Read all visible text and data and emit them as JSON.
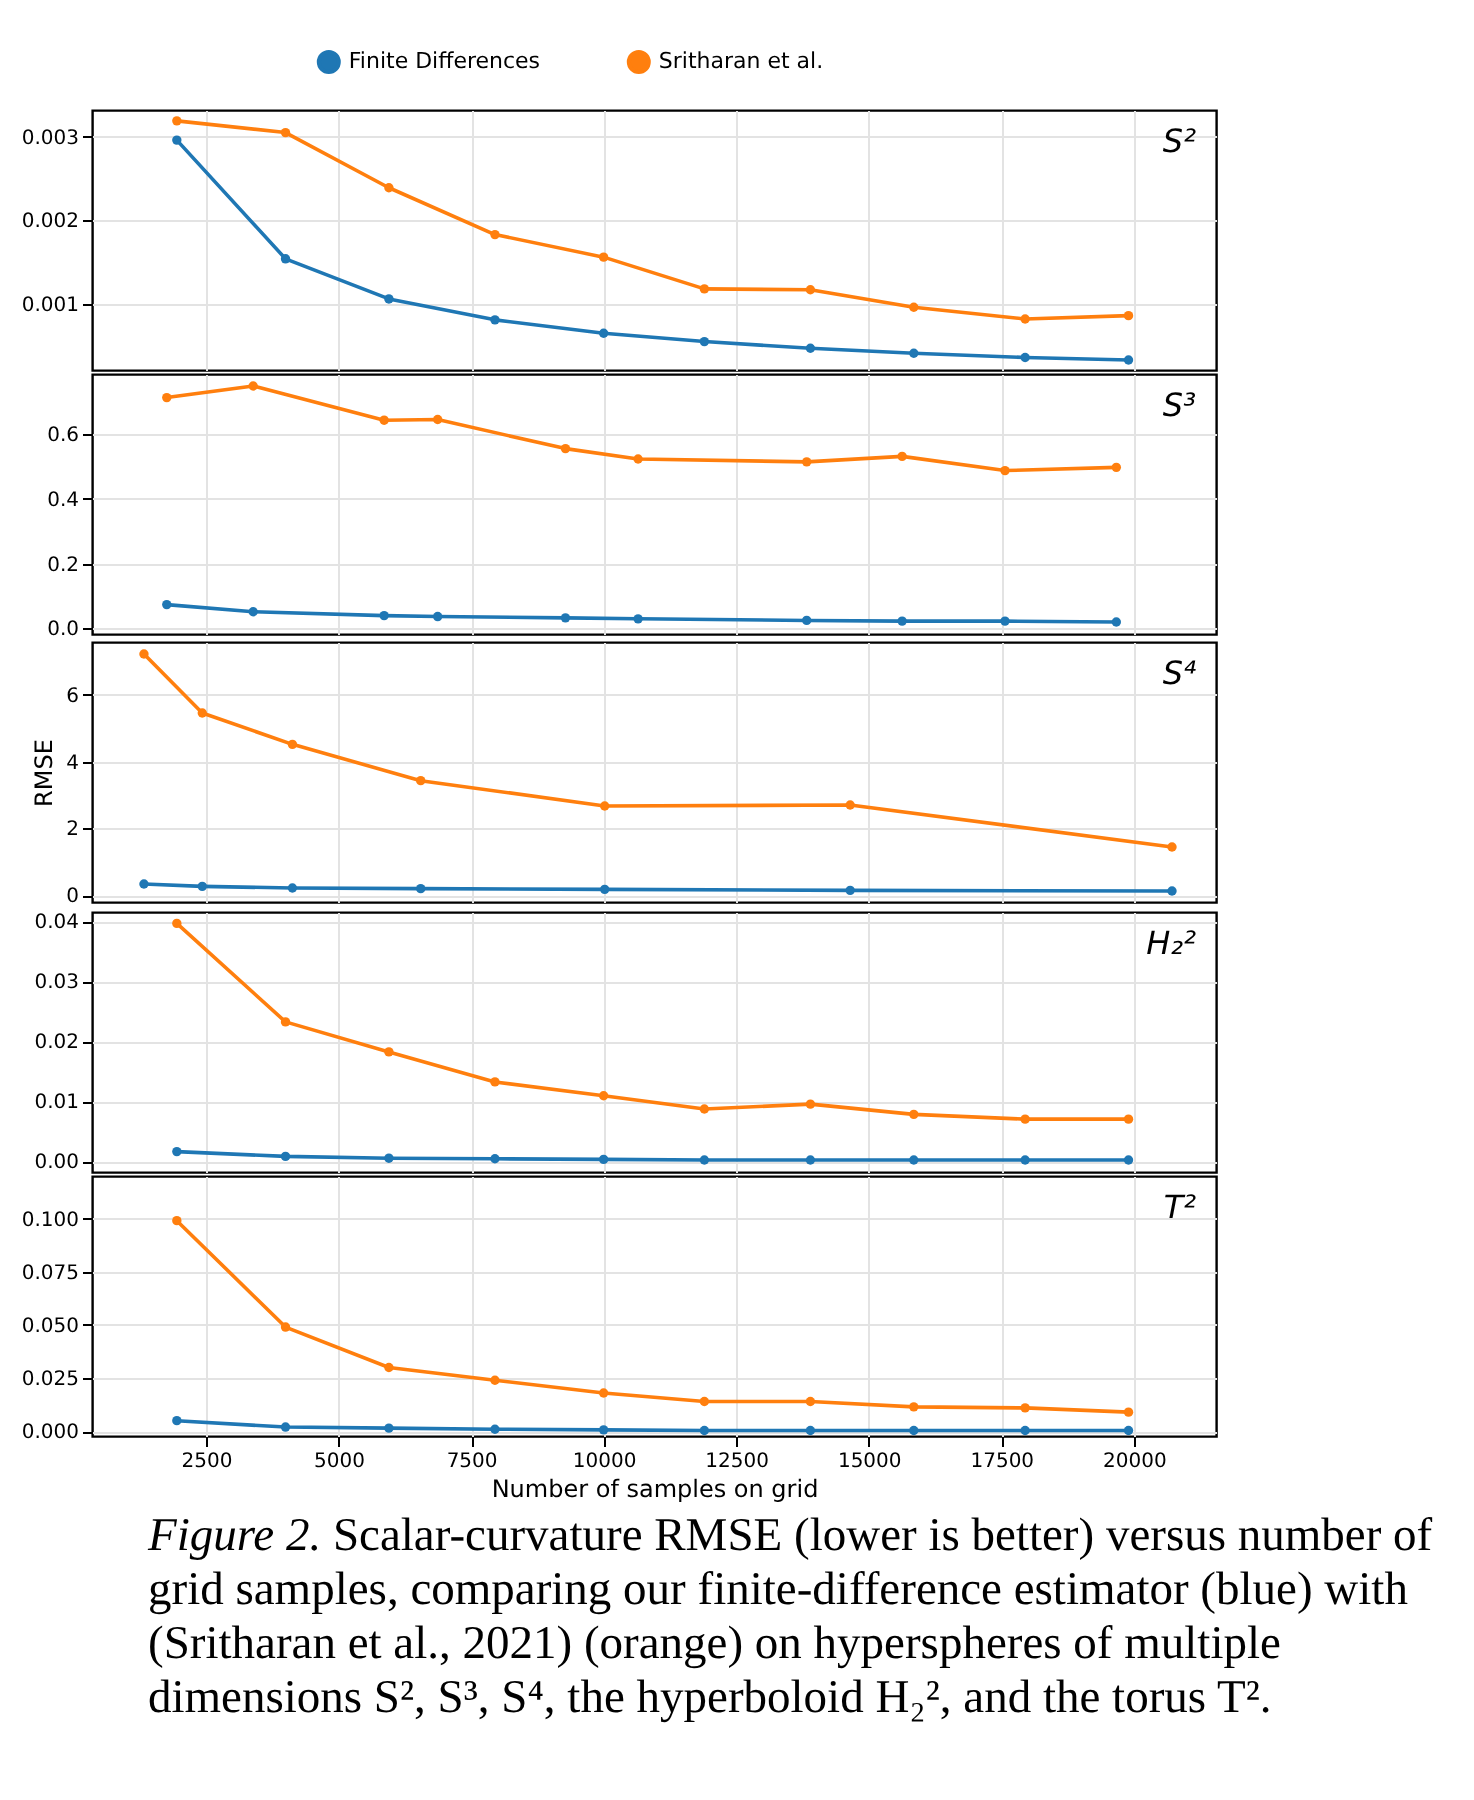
{
  "chart_data": [
    {
      "type": "line",
      "legend": "top",
      "grid": true,
      "marker": "circle",
      "tick_labels": "y",
      "annotations": [
        "S²"
      ],
      "xlim": [
        350,
        21550
      ],
      "xticks": [
        2500,
        5000,
        7500,
        10000,
        12500,
        15000,
        17500,
        20000
      ],
      "ylim": [
        0.00021,
        0.00332
      ],
      "yticks": [
        0.001,
        0.002,
        0.003
      ],
      "x": [
        1950,
        4000,
        5950,
        7950,
        10000,
        11900,
        13900,
        15850,
        17950,
        19900
      ],
      "series": [
        {
          "name": "Finite Differences",
          "color": "#1f77b4",
          "values": [
            0.00296,
            0.00154,
            0.00106,
            0.00081,
            0.00065,
            0.00055,
            0.00047,
            0.00041,
            0.00036,
            0.00033
          ]
        },
        {
          "name": "Sritharan et al.",
          "color": "#ff7f0e",
          "values": [
            0.00319,
            0.00305,
            0.00239,
            0.00183,
            0.00156,
            0.00118,
            0.00117,
            0.00096,
            0.00082,
            0.00086
          ]
        }
      ]
    },
    {
      "type": "line",
      "grid": true,
      "marker": "circle",
      "tick_labels": "y",
      "annotations": [
        "S³"
      ],
      "xlim": [
        350,
        21550
      ],
      "xticks": [
        2500,
        5000,
        7500,
        10000,
        12500,
        15000,
        17500,
        20000
      ],
      "ylim": [
        -0.018,
        0.787
      ],
      "yticks": [
        {
          "value": 0,
          "label": "0.0"
        },
        0.2,
        0.4,
        0.6
      ],
      "x": [
        1760,
        3390,
        5860,
        6870,
        9280,
        10650,
        13830,
        15630,
        17570,
        19670
      ],
      "series": [
        {
          "color": "#1f77b4",
          "values": [
            0.073,
            0.051,
            0.039,
            0.036,
            0.032,
            0.029,
            0.024,
            0.022,
            0.022,
            0.019
          ]
        },
        {
          "color": "#ff7f0e",
          "values": [
            0.714,
            0.75,
            0.644,
            0.646,
            0.556,
            0.524,
            0.515,
            0.532,
            0.488,
            0.498
          ]
        }
      ]
    },
    {
      "type": "line",
      "grid": true,
      "marker": "circle",
      "tick_labels": "y",
      "ylabel": "RMSE",
      "annotations": [
        "S⁴"
      ],
      "xlim": [
        350,
        21550
      ],
      "xticks": [
        2500,
        5000,
        7500,
        10000,
        12500,
        15000,
        17500,
        20000
      ],
      "ylim": [
        -0.21,
        7.59
      ],
      "yticks": [
        0,
        2,
        4,
        6
      ],
      "x": [
        1330,
        2430,
        4130,
        6550,
        10020,
        14650,
        20720
      ],
      "series": [
        {
          "color": "#1f77b4",
          "values": [
            0.33,
            0.26,
            0.21,
            0.19,
            0.17,
            0.14,
            0.12
          ]
        },
        {
          "color": "#ff7f0e",
          "values": [
            7.23,
            5.46,
            4.52,
            3.43,
            2.67,
            2.7,
            1.44
          ]
        }
      ]
    },
    {
      "type": "line",
      "grid": true,
      "marker": "circle",
      "tick_labels": "y",
      "annotations": [
        "H₂²"
      ],
      "xlim": [
        350,
        21550
      ],
      "xticks": [
        2500,
        5000,
        7500,
        10000,
        12500,
        15000,
        17500,
        20000
      ],
      "ylim": [
        -0.0018,
        0.0415
      ],
      "yticks": [
        {
          "value": 0,
          "label": "0.00"
        },
        {
          "value": 0.01,
          "label": "0.01"
        },
        {
          "value": 0.02,
          "label": "0.02"
        },
        {
          "value": 0.03,
          "label": "0.03"
        },
        {
          "value": 0.04,
          "label": "0.04"
        }
      ],
      "x": [
        1950,
        4000,
        5950,
        7950,
        10000,
        11900,
        13900,
        15850,
        17950,
        19900
      ],
      "series": [
        {
          "color": "#1f77b4",
          "values": [
            0.0016,
            0.0008,
            0.0005,
            0.0004,
            0.0003,
            0.0002,
            0.0002,
            0.0002,
            0.0002,
            0.0002
          ]
        },
        {
          "color": "#ff7f0e",
          "values": [
            0.0396,
            0.0232,
            0.0182,
            0.0132,
            0.0109,
            0.0087,
            0.0095,
            0.0078,
            0.007,
            0.007
          ]
        }
      ]
    },
    {
      "type": "line",
      "grid": true,
      "marker": "circle",
      "xlabel": "Number of samples on grid",
      "annotations": [
        "T²",
        "Figure 2. Scalar-curvature RMSE (lower is better) versus number of grid samples, comparing our finite-difference estimator (blue) with (Sritharan et al., 2021) (orange) on hyperspheres of multiple dimensions S², S³, S⁴, the hyperboloid H₂², and the torus T²."
      ],
      "xlim": [
        350,
        21550
      ],
      "xticks": [
        2500,
        5000,
        7500,
        10000,
        12500,
        15000,
        17500,
        20000
      ],
      "ylim": [
        -0.0022,
        0.12
      ],
      "yticks": [
        {
          "value": 0,
          "label": "0.000"
        },
        {
          "value": 0.025,
          "label": "0.025"
        },
        {
          "value": 0.05,
          "label": "0.050"
        },
        {
          "value": 0.075,
          "label": "0.075"
        },
        {
          "value": 0.1,
          "label": "0.100"
        }
      ],
      "x": [
        1950,
        4000,
        5950,
        7950,
        10000,
        11900,
        13900,
        15850,
        17950,
        19900
      ],
      "series": [
        {
          "color": "#1f77b4",
          "values": [
            0.005,
            0.002,
            0.0015,
            0.001,
            0.0007,
            0.0004,
            0.0004,
            0.0004,
            0.0004,
            0.0004
          ]
        },
        {
          "color": "#ff7f0e",
          "values": [
            0.099,
            0.049,
            0.03,
            0.024,
            0.018,
            0.014,
            0.014,
            0.0115,
            0.011,
            0.009
          ]
        }
      ]
    }
  ]
}
